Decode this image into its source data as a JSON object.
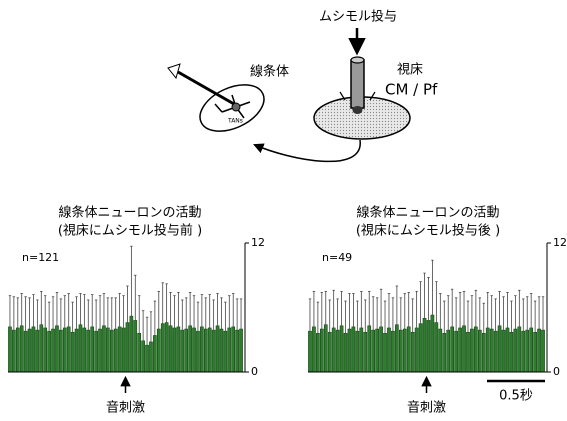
{
  "diagram": {
    "muscimol": "ムシモル投与",
    "thalamus": "視床",
    "cm_pf": "CM / Pf",
    "striatum": "線条体",
    "tans": "TANs"
  },
  "chart_data": [
    {
      "type": "bar",
      "title": "線条体ニューロンの活動",
      "subtitle": "(視床にムシモル投与前 )",
      "annotation": "n=121",
      "stimulus": "音刺激",
      "color": "#2e7d2e",
      "ylim": [
        0,
        12
      ],
      "yticks": [
        0,
        12
      ],
      "values": [
        4.2,
        3.9,
        4.1,
        4.3,
        3.8,
        4.0,
        4.2,
        3.9,
        4.4,
        4.1,
        3.8,
        4.0,
        4.3,
        3.9,
        4.1,
        4.2,
        3.7,
        4.0,
        4.4,
        4.1,
        3.9,
        4.2,
        3.8,
        4.0,
        4.3,
        4.1,
        3.9,
        4.0,
        4.2,
        4.1,
        4.6,
        5.2,
        4.8,
        3.6,
        2.9,
        2.5,
        2.8,
        3.4,
        4.0,
        4.5,
        4.6,
        4.3,
        4.1,
        4.2,
        3.9,
        4.0,
        4.3,
        4.1,
        3.8,
        4.2,
        4.0,
        4.1,
        3.9,
        4.3,
        4.0,
        3.8,
        4.1,
        4.2,
        3.9,
        4.0
      ],
      "errors": [
        2.9,
        3.1,
        2.8,
        3.0,
        3.2,
        2.9,
        3.0,
        2.8,
        3.1,
        3.0,
        2.7,
        3.0,
        3.1,
        2.9,
        3.0,
        3.1,
        2.8,
        3.0,
        2.9,
        3.1,
        2.8,
        3.0,
        2.9,
        3.1,
        3.0,
        2.8,
        3.0,
        2.9,
        3.1,
        3.0,
        3.4,
        6.5,
        4.2,
        3.5,
        2.8,
        2.6,
        2.8,
        3.2,
        3.5,
        3.8,
        3.6,
        3.1,
        3.0,
        3.2,
        2.8,
        2.9,
        3.1,
        3.0,
        2.7,
        3.0,
        2.9,
        3.1,
        2.8,
        3.0,
        2.9,
        2.7,
        3.0,
        3.1,
        2.9,
        2.8
      ]
    },
    {
      "type": "bar",
      "title": "線条体ニューロンの活動",
      "subtitle": "(視床にムシモル投与後 )",
      "annotation": "n=49",
      "stimulus": "音刺激",
      "scale_bar": "0.5秒",
      "color": "#2e7d2e",
      "ylim": [
        0,
        12
      ],
      "yticks": [
        0,
        12
      ],
      "values": [
        3.8,
        4.2,
        3.6,
        4.0,
        4.4,
        3.7,
        4.1,
        3.9,
        4.3,
        3.6,
        4.0,
        4.2,
        3.8,
        4.1,
        3.7,
        4.3,
        3.9,
        4.0,
        4.2,
        3.6,
        4.1,
        3.8,
        4.4,
        3.9,
        4.0,
        4.2,
        3.7,
        4.1,
        4.5,
        5.0,
        4.8,
        5.3,
        4.6,
        4.0,
        3.6,
        3.9,
        4.2,
        3.8,
        4.1,
        4.3,
        3.7,
        4.0,
        4.2,
        3.9,
        3.6,
        4.1,
        4.0,
        3.8,
        4.3,
        3.9,
        4.1,
        3.7,
        4.0,
        4.2,
        3.8,
        3.9,
        4.1,
        3.7,
        4.0,
        3.9
      ],
      "errors": [
        3.0,
        3.3,
        2.9,
        3.4,
        3.1,
        3.0,
        3.5,
        2.9,
        3.2,
        3.0,
        3.3,
        3.1,
        2.8,
        3.4,
        3.0,
        3.2,
        3.1,
        2.9,
        3.5,
        3.0,
        3.2,
        3.1,
        3.6,
        3.0,
        3.3,
        3.2,
        3.1,
        3.4,
        3.9,
        4.2,
        4.0,
        5.1,
        3.8,
        3.3,
        3.0,
        3.2,
        3.5,
        3.1,
        3.3,
        3.2,
        2.9,
        3.1,
        3.4,
        3.0,
        2.8,
        3.3,
        3.1,
        3.0,
        3.2,
        3.1,
        3.3,
        2.9,
        3.1,
        3.4,
        3.0,
        3.1,
        3.2,
        2.9,
        3.0,
        3.1
      ]
    }
  ]
}
